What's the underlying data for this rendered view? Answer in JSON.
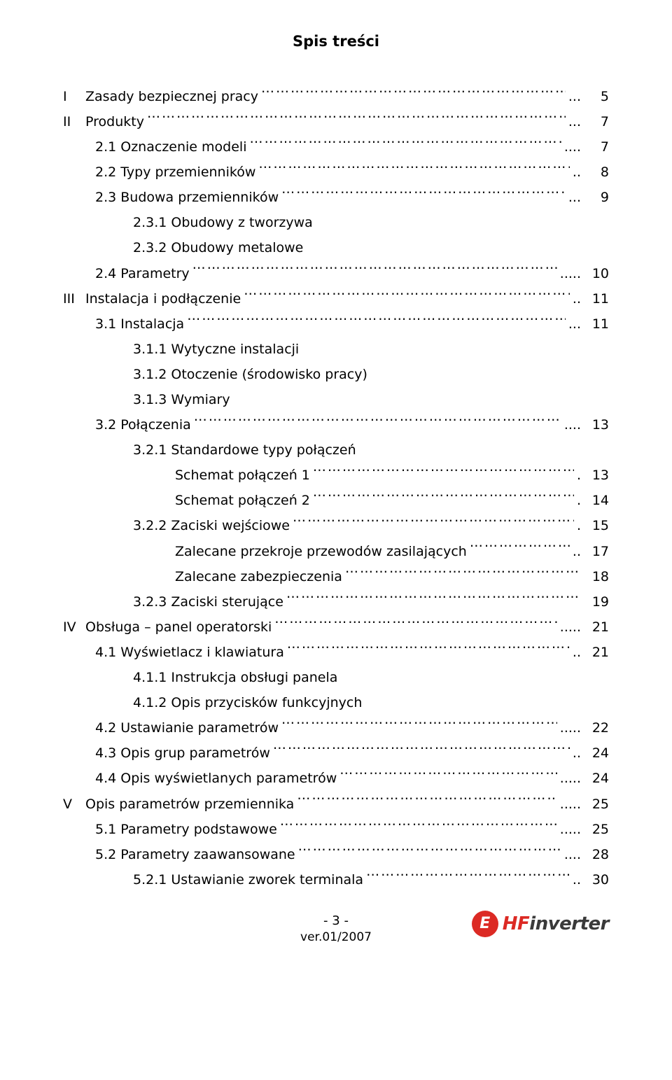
{
  "title": "Spis treści",
  "toc": [
    {
      "roman": "I",
      "level": 0,
      "text": "Zasady bezpiecznej pracy",
      "suffix": "...",
      "page": "5"
    },
    {
      "roman": "II",
      "level": 0,
      "text": "Produkty",
      "suffix": "...",
      "page": "7"
    },
    {
      "roman": "",
      "level": 1,
      "text": "2.1  Oznaczenie modeli",
      "suffix": "....",
      "page": "7"
    },
    {
      "roman": "",
      "level": 1,
      "text": "2.2  Typy przemienników",
      "suffix": "..",
      "page": "8"
    },
    {
      "roman": "",
      "level": 1,
      "text": "2.3  Budowa przemienników",
      "suffix": "...",
      "page": "9"
    },
    {
      "roman": "",
      "level": 2,
      "text": "2.3.1  Obudowy z tworzywa",
      "suffix": "",
      "page": ""
    },
    {
      "roman": "",
      "level": 2,
      "text": "2.3.2  Obudowy metalowe",
      "suffix": "",
      "page": ""
    },
    {
      "roman": "",
      "level": 1,
      "text": "2.4  Parametry",
      "suffix": ".....",
      "page": "10"
    },
    {
      "roman": "III",
      "level": 0,
      "text": "Instalacja i podłączenie",
      "suffix": "..",
      "page": "11"
    },
    {
      "roman": "",
      "level": 1,
      "text": "3.1  Instalacja",
      "suffix": "...",
      "page": "11"
    },
    {
      "roman": "",
      "level": 2,
      "text": "3.1.1  Wytyczne instalacji",
      "suffix": "",
      "page": ""
    },
    {
      "roman": "",
      "level": 2,
      "text": "3.1.2  Otoczenie (środowisko pracy)",
      "suffix": "",
      "page": ""
    },
    {
      "roman": "",
      "level": 2,
      "text": "3.1.3  Wymiary",
      "suffix": "",
      "page": ""
    },
    {
      "roman": "",
      "level": 1,
      "text": "3.2  Połączenia",
      "suffix": "....",
      "page": "13"
    },
    {
      "roman": "",
      "level": 2,
      "text": "3.2.1  Standardowe typy połączeń",
      "suffix": "",
      "page": ""
    },
    {
      "roman": "",
      "level": 3,
      "text": "Schemat połączeń 1",
      "suffix": ".",
      "page": "13"
    },
    {
      "roman": "",
      "level": 3,
      "text": "Schemat połączeń 2",
      "suffix": ".",
      "page": "14"
    },
    {
      "roman": "",
      "level": 2,
      "text": "3.2.2  Zaciski wejściowe",
      "suffix": ".",
      "page": "15"
    },
    {
      "roman": "",
      "level": 3,
      "text": "Zalecane przekroje przewodów zasilających",
      "suffix": "..",
      "page": "17"
    },
    {
      "roman": "",
      "level": 3,
      "text": "Zalecane zabezpieczenia",
      "suffix": "",
      "page": "18"
    },
    {
      "roman": "",
      "level": 2,
      "text": "3.2.3  Zaciski sterujące",
      "suffix": "",
      "page": "19"
    },
    {
      "roman": "IV",
      "level": 0,
      "text": "Obsługa – panel operatorski",
      "suffix": ".....",
      "page": "21"
    },
    {
      "roman": "",
      "level": 1,
      "text": "4.1  Wyświetlacz i klawiatura",
      "suffix": "..",
      "page": "21"
    },
    {
      "roman": "",
      "level": 2,
      "text": "4.1.1  Instrukcja obsługi panela",
      "suffix": "",
      "page": ""
    },
    {
      "roman": "",
      "level": 2,
      "text": "4.1.2  Opis przycisków funkcyjnych",
      "suffix": "",
      "page": ""
    },
    {
      "roman": "",
      "level": 1,
      "text": "4.2  Ustawianie parametrów",
      "suffix": ".....",
      "page": "22"
    },
    {
      "roman": "",
      "level": 1,
      "text": "4.3  Opis grup parametrów",
      "suffix": "..",
      "page": "24"
    },
    {
      "roman": "",
      "level": 1,
      "text": "4.4  Opis wyświetlanych parametrów",
      "suffix": ".....",
      "page": "24"
    },
    {
      "roman": "V",
      "level": 0,
      "text": "Opis parametrów przemiennika",
      "suffix": ".....",
      "page": "25"
    },
    {
      "roman": "",
      "level": 1,
      "text": "5.1  Parametry podstawowe",
      "suffix": ".....",
      "page": "25"
    },
    {
      "roman": "",
      "level": 1,
      "text": "5.2  Parametry zaawansowane",
      "suffix": "....",
      "page": "28"
    },
    {
      "roman": "",
      "level": 2,
      "text": "5.2.1  Ustawianie zworek terminala",
      "suffix": "..",
      "page": "30"
    }
  ],
  "footer": {
    "page_number": "- 3 -",
    "version": "ver.01/2007",
    "logo_badge_letter": "E",
    "logo_prefix": "HF",
    "logo_suffix": "inverter",
    "colors": {
      "brand_red": "#dc2a24",
      "brand_gray": "#3a3a3a"
    }
  }
}
